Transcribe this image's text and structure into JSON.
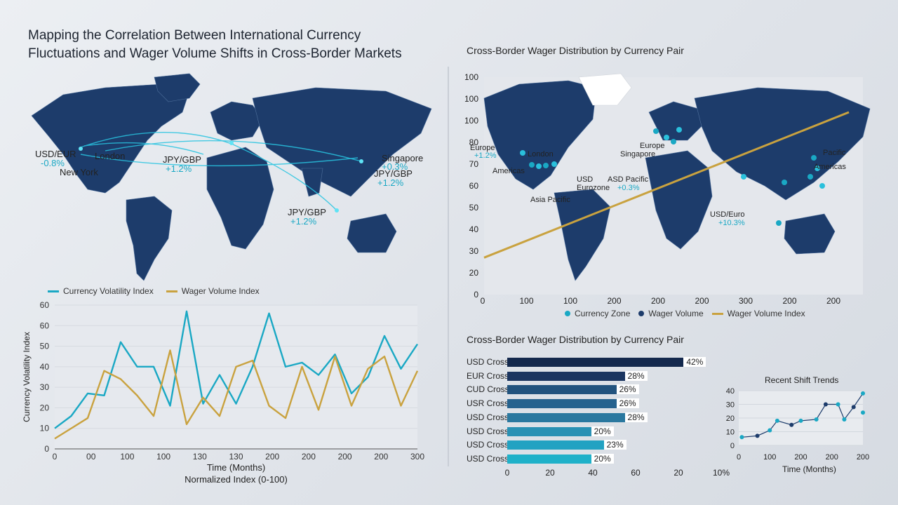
{
  "title_line1": "Mapping the Correlation Between International Currency",
  "title_line2": "Fluctuations and Wager Volume Shifts in Cross-Border Markets",
  "colors": {
    "teal": "#1aa8c4",
    "gold": "#c9a23f",
    "navy": "#14294d",
    "land": "#1d3c6b"
  },
  "left_map": {
    "labels": [
      {
        "text": "USD/EUR"
      },
      {
        "text": "-0.8%"
      },
      {
        "text": "London"
      },
      {
        "text": "New York"
      },
      {
        "text": "JPY/GBP"
      },
      {
        "text": "+1.2%"
      },
      {
        "text": "Singapore"
      },
      {
        "text": "+0.3%"
      },
      {
        "text": "JPY/GBP"
      },
      {
        "text": "+1.2%"
      },
      {
        "text": "JPY/GBP"
      },
      {
        "text": "+1.2%"
      }
    ]
  },
  "right_map": {
    "title": "Cross-Border Wager Distribution by Currency Pair",
    "labels": [
      {
        "text": "Europe"
      },
      {
        "text": "+1.2%"
      },
      {
        "text": "London"
      },
      {
        "text": "Americas"
      },
      {
        "text": "Europe"
      },
      {
        "text": "Singapore"
      },
      {
        "text": "Pacific"
      },
      {
        "text": "Americas"
      },
      {
        "text": "USD"
      },
      {
        "text": "Eurozone"
      },
      {
        "text": "ASD Pacific"
      },
      {
        "text": "+0.3%"
      },
      {
        "text": "Asia Pacific"
      },
      {
        "text": "USD/Euro"
      },
      {
        "text": "+10.3%"
      }
    ],
    "legend": [
      "Currency Zone",
      "Wager Volume",
      "Wager Volume Index"
    ]
  },
  "chart_data": [
    {
      "type": "line",
      "title": "",
      "xlabel": "Time (Months)",
      "xlabel2": "Normalized Index (0-100)",
      "ylabel": "Currency Volatility Index",
      "yticks": [
        "0",
        "10",
        "20",
        "30",
        "40",
        "50",
        "60",
        "60"
      ],
      "xticks": [
        "0",
        "00",
        "100",
        "100",
        "130",
        "130",
        "200",
        "200",
        "200",
        "200",
        "300"
      ],
      "ylim": [
        0,
        70
      ],
      "legend_placement": "top-left",
      "series": [
        {
          "name": "Currency Volatility Index",
          "color": "#1aa8c4",
          "values": [
            10,
            16,
            27,
            26,
            52,
            40,
            40,
            21,
            67,
            22,
            36,
            22,
            40,
            66,
            40,
            42,
            36,
            46,
            27,
            35,
            55,
            39,
            51
          ]
        },
        {
          "name": "Wager Volume Index",
          "color": "#c9a23f",
          "values": [
            5,
            10,
            15,
            38,
            34,
            26,
            16,
            48,
            12,
            25,
            16,
            40,
            43,
            21,
            15,
            40,
            19,
            45,
            21,
            39,
            45,
            21,
            38
          ]
        }
      ]
    },
    {
      "type": "line",
      "title": "Cross-Border Wager Distribution by Currency Pair",
      "yticks": [
        "0",
        "20",
        "30",
        "40",
        "50",
        "60",
        "70",
        "80",
        "100",
        "100",
        "100"
      ],
      "xticks": [
        "0",
        "100",
        "100",
        "200",
        "200",
        "200",
        "300",
        "200",
        "200"
      ],
      "trend_series": {
        "name": "Wager Volume Index",
        "values": [
          17,
          100
        ]
      }
    },
    {
      "type": "bar",
      "orientation": "horizontal",
      "title": "Cross-Border Wager Distribution by Currency Pair",
      "categories": [
        "USD Cross",
        "EUR Cross",
        "CUD Cross",
        "USR Cross",
        "USD Cross",
        "USD Cross",
        "USD Cross",
        "USD Cross"
      ],
      "values": [
        42,
        28,
        26,
        26,
        28,
        20,
        23,
        20
      ],
      "value_labels": [
        "42%",
        "28%",
        "26%",
        "26%",
        "28%",
        "20%",
        "23%",
        "20%"
      ],
      "xticks": [
        "0",
        "20",
        "40",
        "60",
        "20",
        "10%"
      ],
      "xlim": [
        0,
        50
      ]
    },
    {
      "type": "scatter",
      "title": "Recent Shift Trends",
      "xlabel": "Time (Months)",
      "yticks": [
        "0",
        "10",
        "20",
        "30",
        "40"
      ],
      "xticks": [
        "0",
        "100",
        "200",
        "200",
        "200"
      ],
      "ylim": [
        0,
        40
      ],
      "xlim": [
        0,
        200
      ],
      "points": [
        [
          5,
          6
        ],
        [
          30,
          7
        ],
        [
          50,
          11
        ],
        [
          62,
          18
        ],
        [
          85,
          15
        ],
        [
          100,
          18
        ],
        [
          125,
          19
        ],
        [
          140,
          30
        ],
        [
          160,
          30
        ],
        [
          170,
          19
        ],
        [
          185,
          28
        ],
        [
          200,
          38
        ],
        [
          200,
          24
        ]
      ]
    }
  ]
}
